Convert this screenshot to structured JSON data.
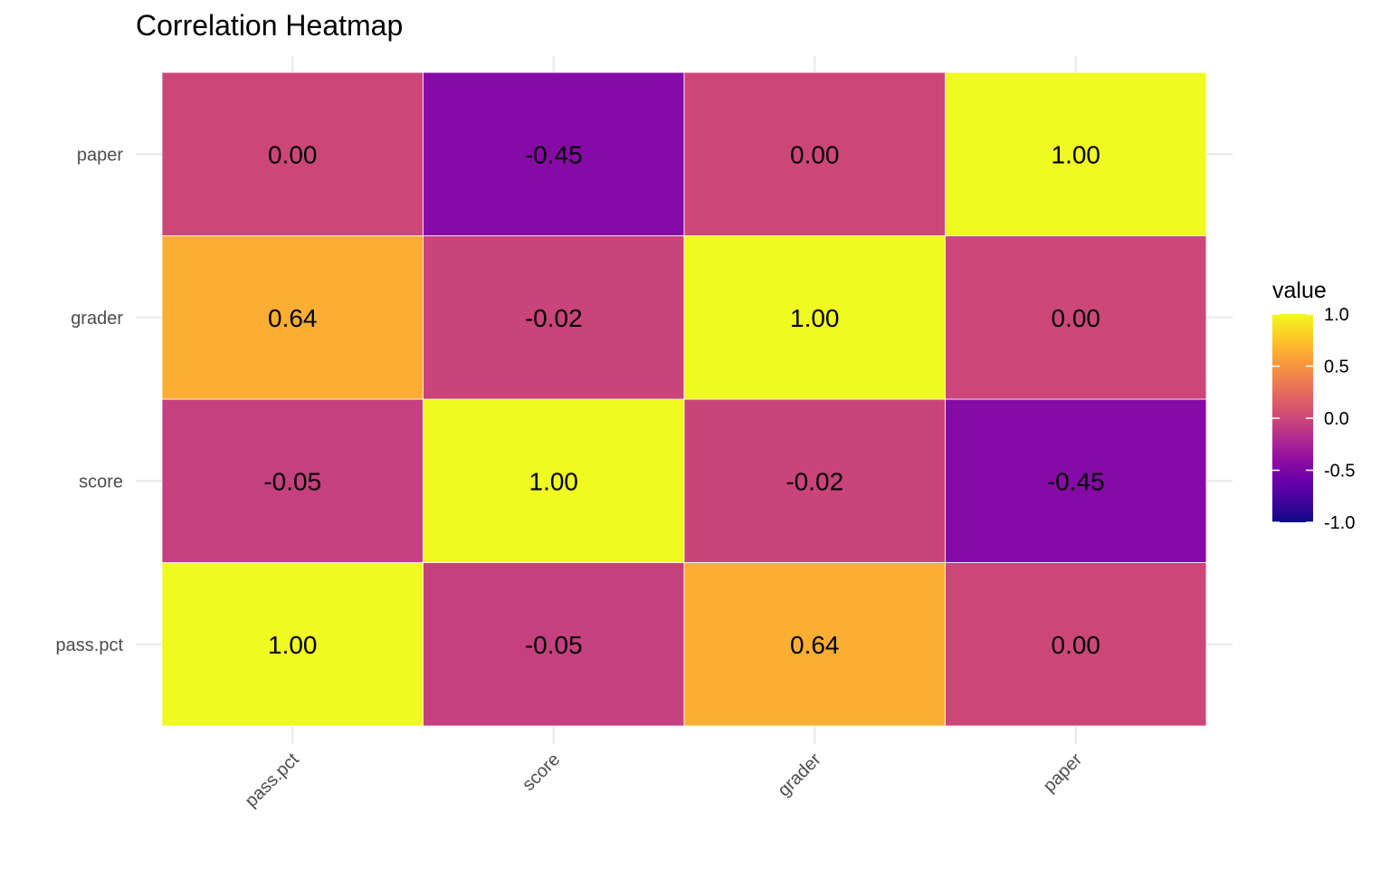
{
  "chart_data": {
    "type": "heatmap",
    "title": "Correlation Heatmap",
    "x_categories": [
      "pass.pct",
      "score",
      "grader",
      "paper"
    ],
    "y_categories": [
      "pass.pct",
      "score",
      "grader",
      "paper"
    ],
    "values": [
      [
        1.0,
        -0.05,
        0.64,
        -0.0
      ],
      [
        -0.05,
        1.0,
        -0.02,
        -0.45
      ],
      [
        0.64,
        -0.02,
        1.0,
        -0.0
      ],
      [
        -0.0,
        -0.45,
        -0.0,
        1.0
      ]
    ],
    "value_format": "2 decimals",
    "legend": {
      "title": "value",
      "placement": "right",
      "ticks": [
        1.0,
        0.5,
        0.0,
        -0.5,
        -1.0
      ],
      "tick_labels": [
        "1.0",
        "0.5",
        "0.0",
        "-0.5",
        "-1.0"
      ],
      "limits": [
        -1,
        1
      ]
    },
    "colorscale": "plasma",
    "colors": {
      "grid": "#ebebeb",
      "tick_label": "#4d4d4d",
      "cell_text": "#000000",
      "cell_border": "#ffffff"
    }
  }
}
